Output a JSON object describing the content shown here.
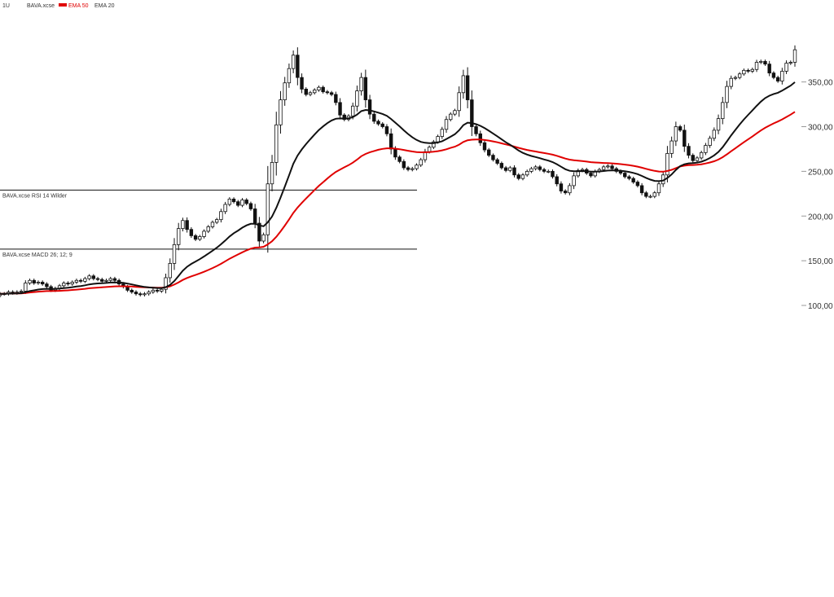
{
  "chart_data": {
    "type": "candlestick",
    "header": {
      "interval": "1U",
      "symbol": "BAVA.xcse",
      "ema_slow_label": "EMA 50",
      "ema_fast_label": "EMA 20"
    },
    "price_axis": {
      "ylim": [
        90,
        395
      ],
      "ticks": [
        {
          "v": 100,
          "label": "100,00"
        },
        {
          "v": 150,
          "label": "150,00"
        },
        {
          "v": 200,
          "label": "200,00"
        },
        {
          "v": 250,
          "label": "250,00"
        },
        {
          "v": 300,
          "label": "300,00"
        },
        {
          "v": 350,
          "label": "350,00"
        }
      ]
    },
    "levels": [
      {
        "v": 229,
        "label": "BAVA.xcse  RSI 14 Wilder"
      },
      {
        "v": 163,
        "label": "BAVA.xcse  MACD 26; 12; 9"
      }
    ],
    "closes": [
      113,
      113,
      115,
      114,
      115,
      116,
      125,
      128,
      125,
      126,
      124,
      121,
      117,
      119,
      122,
      125,
      124,
      126,
      128,
      127,
      130,
      133,
      130,
      129,
      127,
      128,
      130,
      128,
      124,
      121,
      117,
      115,
      113,
      112,
      113,
      115,
      117,
      116,
      118,
      131,
      147,
      168,
      186,
      195,
      185,
      178,
      174,
      177,
      183,
      188,
      193,
      196,
      205,
      213,
      219,
      216,
      212,
      218,
      214,
      208,
      192,
      172,
      179,
      236,
      260,
      302,
      330,
      349,
      365,
      380,
      355,
      342,
      336,
      338,
      341,
      344,
      339,
      338,
      336,
      327,
      313,
      308,
      312,
      323,
      340,
      355,
      330,
      314,
      306,
      303,
      300,
      292,
      275,
      266,
      261,
      254,
      252,
      253,
      257,
      263,
      272,
      277,
      283,
      289,
      297,
      308,
      314,
      318,
      338,
      357,
      330,
      300,
      292,
      282,
      274,
      268,
      263,
      259,
      254,
      251,
      254,
      246,
      242,
      246,
      250,
      253,
      255,
      252,
      250,
      250,
      244,
      236,
      228,
      226,
      234,
      245,
      251,
      252,
      248,
      245,
      250,
      252,
      255,
      256,
      253,
      250,
      248,
      244,
      242,
      238,
      234,
      226,
      222,
      222,
      226,
      236,
      246,
      270,
      284,
      300,
      296,
      278,
      268,
      262,
      265,
      271,
      279,
      287,
      296,
      309,
      327,
      345,
      354,
      355,
      359,
      363,
      362,
      364,
      372,
      373,
      370,
      360,
      355,
      351,
      362,
      371,
      372,
      386
    ],
    "ema50": [
      113,
      113.1,
      113.2,
      113.3,
      113.4,
      113.5,
      113.9,
      114.5,
      114.9,
      115.4,
      115.7,
      116,
      116,
      116.1,
      116.3,
      116.6,
      116.9,
      117.3,
      117.7,
      118.1,
      118.6,
      119.2,
      119.6,
      120,
      120.3,
      120.6,
      121,
      121.3,
      121.4,
      121.4,
      121.3,
      121.1,
      120.8,
      120.5,
      120.3,
      120.1,
      120,
      119.9,
      119.8,
      120.3,
      121.4,
      123.3,
      125.8,
      128.5,
      130.7,
      132.5,
      134.1,
      135.8,
      137.6,
      139.6,
      141.8,
      144.1,
      146.6,
      149.4,
      152.2,
      154.7,
      157,
      159.4,
      161.6,
      163.5,
      164.7,
      165,
      165.6,
      168.3,
      171.8,
      176.8,
      182.8,
      189.3,
      196.2,
      203.4,
      209.4,
      214.7,
      219.6,
      224.4,
      229.1,
      233.7,
      237.9,
      242,
      245.9,
      249.3,
      252,
      254.5,
      256.9,
      259.7,
      263.1,
      266.9,
      269.5,
      271.4,
      272.8,
      274.1,
      275.1,
      275.8,
      275.8,
      275.4,
      274.8,
      273.9,
      273,
      272.2,
      271.6,
      271.3,
      271.3,
      271.5,
      271.9,
      272.6,
      273.5,
      274.7,
      276.2,
      277.6,
      279.9,
      282.9,
      284.8,
      285.4,
      285.7,
      285.6,
      285.1,
      284.4,
      283.5,
      282.5,
      281.3,
      280.1,
      279,
      277.7,
      276.3,
      275,
      273.9,
      273,
      272.2,
      271.3,
      270.5,
      269.7,
      268.7,
      267.4,
      265.8,
      264.3,
      263.1,
      262.4,
      261.9,
      261.5,
      260.9,
      260.3,
      259.9,
      259.6,
      259.4,
      259.2,
      258.9,
      258.5,
      258.1,
      257.5,
      256.9,
      256.2,
      255.3,
      254.1,
      252.8,
      251.6,
      250.5,
      249.8,
      249.6,
      250.4,
      251.7,
      253.6,
      255.4,
      256.4,
      256.9,
      257.1,
      257.4,
      257.9,
      258.8,
      259.9,
      261.3,
      263.2,
      265.8,
      269,
      272.5,
      275.8,
      279.2,
      282.6,
      285.8,
      289,
      292.4,
      295.7,
      298.7,
      301.3,
      303.6,
      305.7,
      308.1,
      310.8,
      313.5,
      316.6
    ]
  }
}
